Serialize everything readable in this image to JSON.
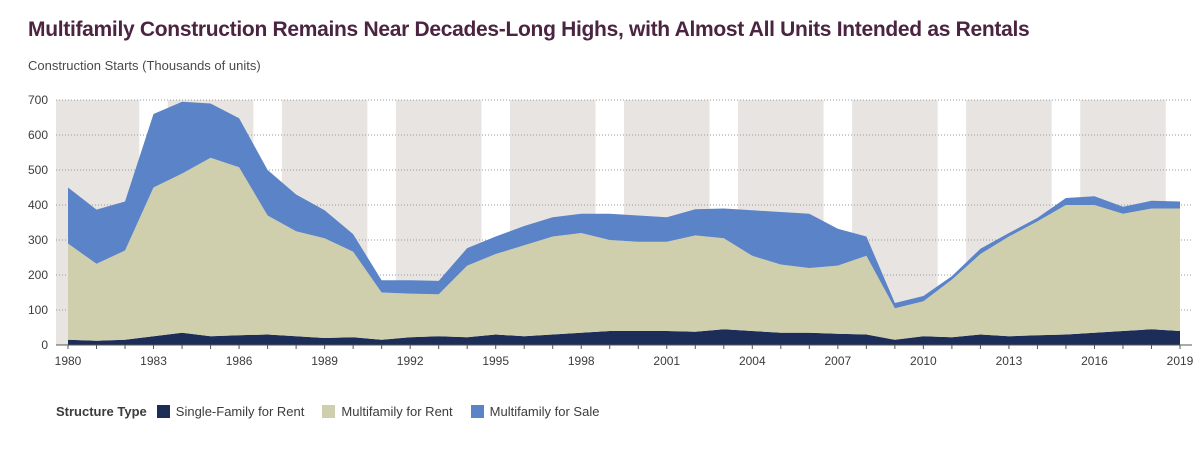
{
  "title": "Multifamily Construction Remains Near Decades-Long Highs, with Almost All Units Intended as Rentals",
  "subtitle": "Construction Starts (Thousands of units)",
  "legend": {
    "title": "Structure Type",
    "items": [
      {
        "label": "Single-Family for Rent",
        "color": "#1d2d5a"
      },
      {
        "label": "Multifamily for Rent",
        "color": "#cfcfad"
      },
      {
        "label": "Multifamily for Sale",
        "color": "#5b83c8"
      }
    ]
  },
  "colors": {
    "band": "#e8e4e1",
    "grid": "#9a9a9a"
  },
  "chart_data": {
    "type": "area",
    "stacked": true,
    "x": [
      1980,
      1981,
      1982,
      1983,
      1984,
      1985,
      1986,
      1987,
      1988,
      1989,
      1990,
      1991,
      1992,
      1993,
      1994,
      1995,
      1996,
      1997,
      1998,
      1999,
      2000,
      2001,
      2002,
      2003,
      2004,
      2005,
      2006,
      2007,
      2008,
      2009,
      2010,
      2011,
      2012,
      2013,
      2014,
      2015,
      2016,
      2017,
      2018,
      2019
    ],
    "x_tick_labels": [
      "1980",
      "1983",
      "1986",
      "1989",
      "1992",
      "1995",
      "1998",
      "2001",
      "2004",
      "2007",
      "2010",
      "2013",
      "2016",
      "2019"
    ],
    "ylim": [
      0,
      700
    ],
    "y_ticks": [
      0,
      100,
      200,
      300,
      400,
      500,
      600,
      700
    ],
    "title": "Multifamily Construction Remains Near Decades-Long Highs, with Almost All Units Intended as Rentals",
    "ylabel": "Construction Starts (Thousands of units)",
    "grid": true,
    "shaded_bands": [
      [
        1980,
        1982
      ],
      [
        1984,
        1986
      ],
      [
        1988,
        1990
      ],
      [
        1992,
        1994
      ],
      [
        1996,
        1998
      ],
      [
        2000,
        2002
      ],
      [
        2004,
        2006
      ],
      [
        2008,
        2010
      ],
      [
        2012,
        2014
      ],
      [
        2016,
        2018
      ]
    ],
    "series": [
      {
        "name": "Single-Family for Rent",
        "values": [
          15,
          12,
          15,
          25,
          35,
          25,
          28,
          30,
          25,
          20,
          22,
          15,
          22,
          25,
          22,
          30,
          25,
          30,
          35,
          40,
          40,
          40,
          38,
          45,
          40,
          35,
          35,
          32,
          30,
          15,
          25,
          22,
          30,
          25,
          28,
          30,
          35,
          40,
          45,
          40
        ]
      },
      {
        "name": "Multifamily for Rent",
        "values": [
          275,
          220,
          255,
          425,
          455,
          510,
          480,
          340,
          300,
          285,
          245,
          135,
          125,
          120,
          205,
          230,
          260,
          280,
          285,
          260,
          255,
          255,
          275,
          260,
          215,
          195,
          185,
          195,
          225,
          90,
          100,
          165,
          230,
          285,
          325,
          370,
          365,
          335,
          345,
          350
        ]
      },
      {
        "name": "Multifamily for Sale",
        "values": [
          160,
          155,
          140,
          210,
          205,
          155,
          140,
          130,
          105,
          80,
          50,
          35,
          38,
          38,
          50,
          50,
          55,
          55,
          55,
          75,
          75,
          70,
          75,
          85,
          130,
          150,
          155,
          105,
          55,
          15,
          15,
          10,
          15,
          10,
          10,
          20,
          25,
          20,
          22,
          20
        ]
      }
    ]
  }
}
